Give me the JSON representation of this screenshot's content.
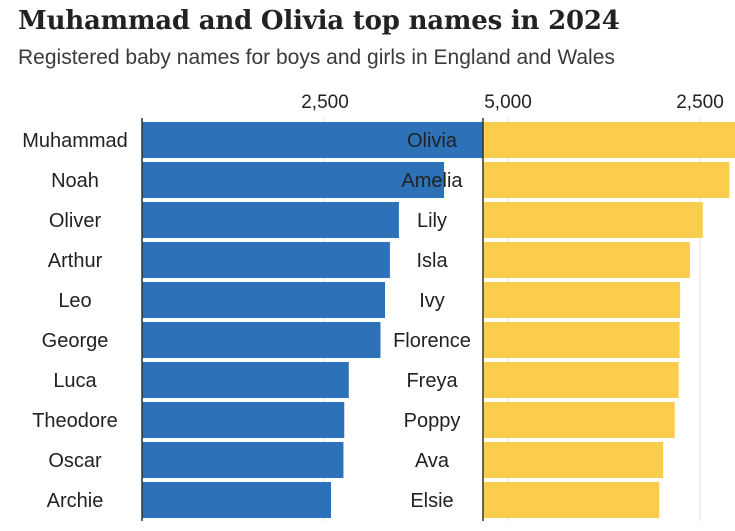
{
  "title": "Muhammad and Olivia top names in 2024",
  "subtitle": "Registered baby names for boys and girls in England and Wales",
  "chart_data": [
    {
      "type": "bar",
      "orientation": "horizontal",
      "color": "#2d72b8",
      "xlim": [
        0,
        5800
      ],
      "ticks": [
        2500,
        5000
      ],
      "tick_labels": [
        "2,500",
        "5,000"
      ],
      "categories": [
        "Muhammad",
        "Noah",
        "Oliver",
        "Arthur",
        "Leo",
        "George",
        "Luca",
        "Theodore",
        "Oscar",
        "Archie"
      ],
      "values": [
        5721,
        4127,
        3510,
        3387,
        3320,
        3258,
        2825,
        2763,
        2752,
        2582
      ]
    },
    {
      "type": "bar",
      "orientation": "horizontal",
      "color": "#fbcd4c",
      "xlim": [
        0,
        5800
      ],
      "ticks": [
        2500,
        5000
      ],
      "tick_labels": [
        "2,500",
        "5,000"
      ],
      "categories": [
        "Olivia",
        "Amelia",
        "Lily",
        "Isla",
        "Ivy",
        "Florence",
        "Freya",
        "Poppy",
        "Ava",
        "Elsie"
      ],
      "values": [
        3212,
        2839,
        2532,
        2384,
        2271,
        2265,
        2254,
        2209,
        2075,
        2031
      ]
    }
  ]
}
